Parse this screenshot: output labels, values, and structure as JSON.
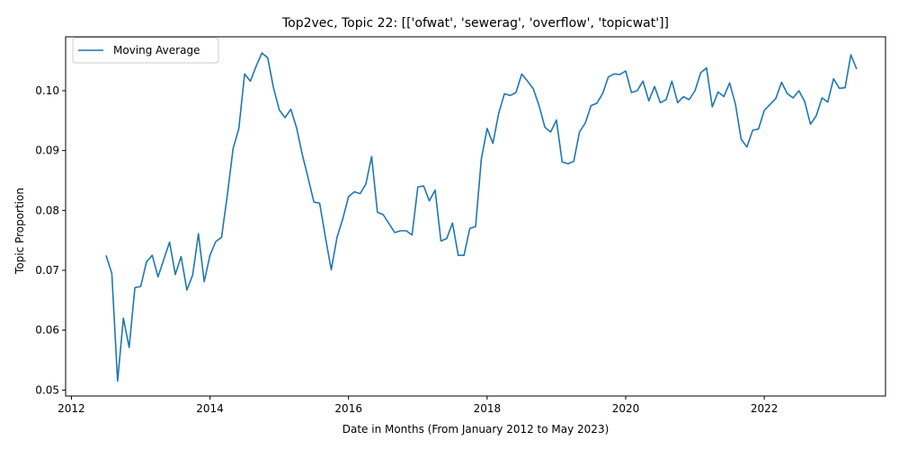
{
  "chart_data": {
    "type": "line",
    "title": "Top2vec, Topic 22: [['ofwat', 'sewerag', 'overflow', 'topicwat']]",
    "xlabel": "Date in Months (From January 2012 to May 2023)",
    "ylabel": "Topic Proportion",
    "xlim": [
      "2011-12",
      "2023-10"
    ],
    "ylim": [
      0.049,
      0.109
    ],
    "xticks": [
      "2012",
      "2014",
      "2016",
      "2018",
      "2020",
      "2022"
    ],
    "yticks": [
      "0.05",
      "0.06",
      "0.07",
      "0.08",
      "0.09",
      "0.10"
    ],
    "grid": false,
    "legend_position": "upper-left",
    "series": [
      {
        "name": "Moving Average",
        "color": "#1f77b4",
        "x": [
          "2012-07",
          "2012-08",
          "2012-09",
          "2012-10",
          "2012-11",
          "2012-12",
          "2013-01",
          "2013-02",
          "2013-03",
          "2013-04",
          "2013-05",
          "2013-06",
          "2013-07",
          "2013-08",
          "2013-09",
          "2013-10",
          "2013-11",
          "2013-12",
          "2014-01",
          "2014-02",
          "2014-03",
          "2014-04",
          "2014-05",
          "2014-06",
          "2014-07",
          "2014-08",
          "2014-09",
          "2014-10",
          "2014-11",
          "2014-12",
          "2015-01",
          "2015-02",
          "2015-03",
          "2015-04",
          "2015-05",
          "2015-06",
          "2015-07",
          "2015-08",
          "2015-09",
          "2015-10",
          "2015-11",
          "2015-12",
          "2016-01",
          "2016-02",
          "2016-03",
          "2016-04",
          "2016-05",
          "2016-06",
          "2016-07",
          "2016-08",
          "2016-09",
          "2016-10",
          "2016-11",
          "2016-12",
          "2017-01",
          "2017-02",
          "2017-03",
          "2017-04",
          "2017-05",
          "2017-06",
          "2017-07",
          "2017-08",
          "2017-09",
          "2017-10",
          "2017-11",
          "2017-12",
          "2018-01",
          "2018-02",
          "2018-03",
          "2018-04",
          "2018-05",
          "2018-06",
          "2018-07",
          "2018-08",
          "2018-09",
          "2018-10",
          "2018-11",
          "2018-12",
          "2019-01",
          "2019-02",
          "2019-03",
          "2019-04",
          "2019-05",
          "2019-06",
          "2019-07",
          "2019-08",
          "2019-09",
          "2019-10",
          "2019-11",
          "2019-12",
          "2020-01",
          "2020-02",
          "2020-03",
          "2020-04",
          "2020-05",
          "2020-06",
          "2020-07",
          "2020-08",
          "2020-09",
          "2020-10",
          "2020-11",
          "2020-12",
          "2021-01",
          "2021-02",
          "2021-03",
          "2021-04",
          "2021-05",
          "2021-06",
          "2021-07",
          "2021-08",
          "2021-09",
          "2021-10",
          "2021-11",
          "2021-12",
          "2022-01",
          "2022-02",
          "2022-03",
          "2022-04",
          "2022-05",
          "2022-06",
          "2022-07",
          "2022-08",
          "2022-09",
          "2022-10",
          "2022-11",
          "2022-12",
          "2023-01",
          "2023-02",
          "2023-03",
          "2023-04",
          "2023-05"
        ],
        "y": [
          0.0725,
          0.0695,
          0.0515,
          0.062,
          0.0571,
          0.0671,
          0.0673,
          0.0714,
          0.0725,
          0.0689,
          0.0718,
          0.0747,
          0.0693,
          0.0723,
          0.0667,
          0.0692,
          0.0761,
          0.0681,
          0.0725,
          0.0748,
          0.0755,
          0.0825,
          0.0903,
          0.0937,
          0.1028,
          0.1016,
          0.1041,
          0.1063,
          0.1055,
          0.1005,
          0.0968,
          0.0955,
          0.0969,
          0.0938,
          0.0893,
          0.0854,
          0.0814,
          0.0812,
          0.0755,
          0.0701,
          0.0755,
          0.0786,
          0.0823,
          0.0831,
          0.0828,
          0.0844,
          0.089,
          0.0797,
          0.0793,
          0.0778,
          0.0763,
          0.0766,
          0.0766,
          0.0759,
          0.0839,
          0.0841,
          0.0816,
          0.0834,
          0.0749,
          0.0753,
          0.0779,
          0.0725,
          0.0725,
          0.077,
          0.0773,
          0.0886,
          0.0937,
          0.0912,
          0.0962,
          0.0995,
          0.0992,
          0.0997,
          0.1028,
          0.1016,
          0.1003,
          0.0975,
          0.0939,
          0.0931,
          0.0951,
          0.0881,
          0.0878,
          0.0882,
          0.0931,
          0.0946,
          0.0975,
          0.0979,
          0.0995,
          0.1023,
          0.1028,
          0.1027,
          0.1033,
          0.0997,
          0.1,
          0.1016,
          0.0983,
          0.1007,
          0.098,
          0.0985,
          0.1016,
          0.098,
          0.099,
          0.0985,
          0.1,
          0.103,
          0.1038,
          0.0973,
          0.0998,
          0.099,
          0.1013,
          0.0978,
          0.0919,
          0.0906,
          0.0934,
          0.0936,
          0.0967,
          0.0977,
          0.0987,
          0.1014,
          0.0995,
          0.0988,
          0.1,
          0.0982,
          0.0944,
          0.0958,
          0.0988,
          0.0981,
          0.102,
          0.1004,
          0.1005,
          0.106,
          0.1036
        ]
      }
    ]
  }
}
